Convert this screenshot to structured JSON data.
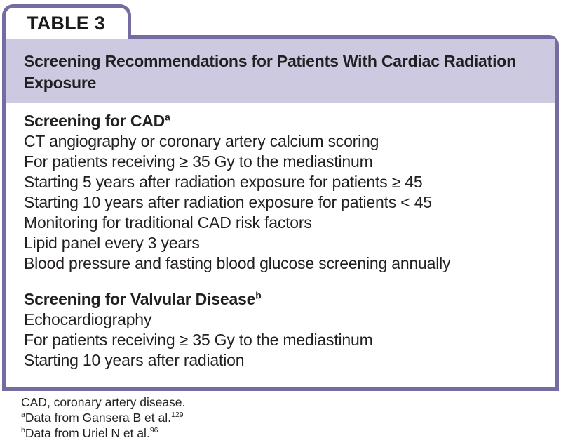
{
  "tab": {
    "label": "TABLE 3"
  },
  "table": {
    "title_lines": [
      "Screening Recommendations for Patients With Cardiac Radiation",
      "Exposure"
    ],
    "sections": [
      {
        "heading": "Screening for CAD",
        "heading_sup": "a",
        "rows": [
          "CT angiography or coronary artery calcium scoring",
          "For patients receiving ≥ 35 Gy to the mediastinum",
          "Starting 5 years after radiation exposure for patients ≥ 45",
          "Starting 10 years after radiation exposure for patients < 45",
          "Monitoring for traditional CAD risk factors",
          "Lipid panel every 3 years",
          "Blood pressure and fasting blood glucose screening annually"
        ]
      },
      {
        "heading": "Screening for Valvular Disease",
        "heading_sup": "b",
        "rows": [
          "Echocardiography",
          "For patients receiving ≥ 35 Gy to the mediastinum",
          "Starting 10 years after radiation"
        ]
      }
    ]
  },
  "footnotes": {
    "abbreviation": "CAD, coronary artery disease.",
    "notes": [
      {
        "sup": "a",
        "text": "Data from Gansera B et al.",
        "ref_sup": "129"
      },
      {
        "sup": "b",
        "text": "Data from Uriel N et al.",
        "ref_sup": "96"
      }
    ]
  },
  "colors": {
    "border_purple": "#756da1",
    "header_lavender": "#cdc9e1",
    "text_black": "#231f20"
  }
}
